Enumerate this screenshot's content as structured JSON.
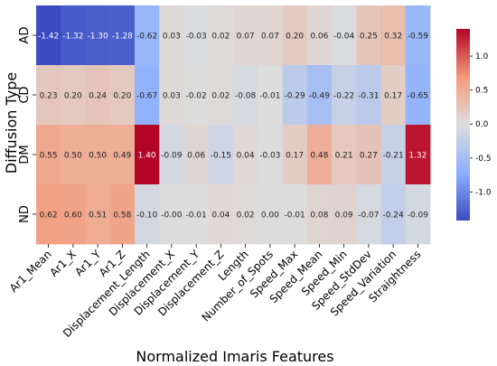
{
  "chart_data": {
    "type": "heatmap",
    "xlabel": "Normalized Imaris Features",
    "ylabel": "Diffusion Type",
    "rows": [
      "AD",
      "CD",
      "DM",
      "ND"
    ],
    "columns": [
      "Ar1_Mean",
      "Ar1_X",
      "Ar1_Y",
      "Ar1_Z",
      "Displacement_Length",
      "Displacement_X",
      "Displacement_Y",
      "Displacement_Z",
      "Length",
      "Number_of_Spots",
      "Speed_Max",
      "Speed_Mean",
      "Speed_Min",
      "Speed_StdDev",
      "Speed_Variation",
      "Straightness"
    ],
    "values": [
      [
        -1.42,
        -1.32,
        -1.3,
        -1.28,
        -0.62,
        0.03,
        -0.03,
        0.02,
        0.07,
        0.07,
        0.2,
        0.06,
        -0.04,
        0.25,
        0.32,
        -0.59
      ],
      [
        0.23,
        0.2,
        0.24,
        0.2,
        -0.67,
        0.03,
        -0.02,
        0.02,
        -0.08,
        -0.01,
        -0.29,
        -0.49,
        -0.22,
        -0.31,
        0.17,
        -0.65
      ],
      [
        0.55,
        0.5,
        0.5,
        0.49,
        1.4,
        -0.09,
        0.06,
        -0.15,
        0.04,
        -0.03,
        0.17,
        0.48,
        0.21,
        0.27,
        -0.21,
        1.32
      ],
      [
        0.62,
        0.6,
        0.51,
        0.58,
        -0.1,
        -0.0,
        -0.01,
        0.04,
        0.02,
        0.0,
        -0.01,
        0.08,
        0.09,
        -0.07,
        -0.24,
        -0.09
      ]
    ],
    "value_labels": [
      [
        "-1.42",
        "-1.32",
        "-1.30",
        "-1.28",
        "-0.62",
        "0.03",
        "-0.03",
        "0.02",
        "0.07",
        "0.07",
        "0.20",
        "0.06",
        "-0.04",
        "0.25",
        "0.32",
        "-0.59"
      ],
      [
        "0.23",
        "0.20",
        "0.24",
        "0.20",
        "-0.67",
        "0.03",
        "-0.02",
        "0.02",
        "-0.08",
        "-0.01",
        "-0.29",
        "-0.49",
        "-0.22",
        "-0.31",
        "0.17",
        "-0.65"
      ],
      [
        "0.55",
        "0.50",
        "0.50",
        "0.49",
        "1.40",
        "-0.09",
        "0.06",
        "-0.15",
        "0.04",
        "-0.03",
        "0.17",
        "0.48",
        "0.21",
        "0.27",
        "-0.21",
        "1.32"
      ],
      [
        "0.62",
        "0.60",
        "0.51",
        "0.58",
        "-0.10",
        "-0.00",
        "-0.01",
        "0.04",
        "0.02",
        "0.00",
        "-0.01",
        "0.08",
        "0.09",
        "-0.07",
        "-0.24",
        "-0.09"
      ]
    ],
    "colormap": "coolwarm",
    "color_range": [
      -1.42,
      1.4
    ],
    "colorbar_ticks": [
      -1.0,
      -0.5,
      0.0,
      0.5,
      1.0
    ],
    "colorbar_tick_labels": [
      "-1.0",
      "-0.5",
      "0.0",
      "0.5",
      "1.0"
    ],
    "colorbar_position": "right",
    "colors": {
      "low": "#3b4cc0",
      "mid": "#dddddd",
      "high": "#b40426"
    }
  }
}
